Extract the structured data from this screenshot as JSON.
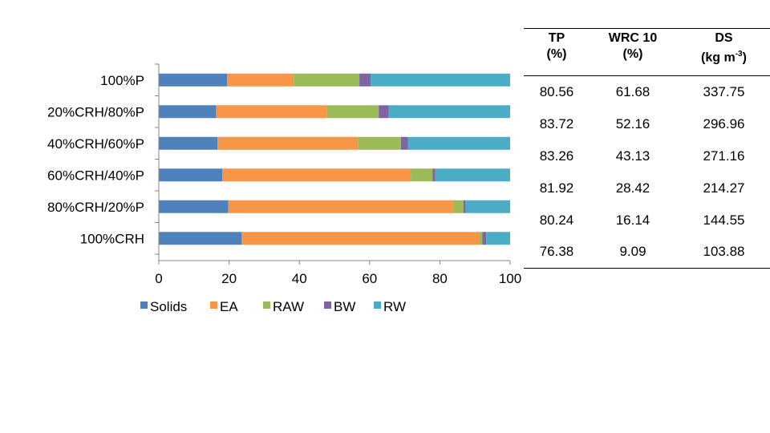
{
  "chart_data": {
    "type": "bar",
    "orientation": "horizontal",
    "stacked": true,
    "categories": [
      "100%P",
      "20%CRH/80%P",
      "40%CRH/60%P",
      "60%CRH/40%P",
      "80%CRH/20%P",
      "100%CRH"
    ],
    "series": [
      {
        "name": "Solids",
        "color": "#4F81BD",
        "values": [
          19.4,
          16.3,
          16.7,
          18.1,
          19.8,
          23.6
        ]
      },
      {
        "name": "EA",
        "color": "#F79646",
        "values": [
          19.0,
          31.5,
          40.0,
          53.6,
          64.2,
          67.6
        ]
      },
      {
        "name": "RAW",
        "color": "#9BBB59",
        "values": [
          18.7,
          14.8,
          12.2,
          6.2,
          2.7,
          0.9
        ]
      },
      {
        "name": "BW",
        "color": "#8064A2",
        "values": [
          3.2,
          2.8,
          2.0,
          0.8,
          0.6,
          1.1
        ]
      },
      {
        "name": "RW",
        "color": "#4BACC6",
        "values": [
          39.7,
          34.6,
          29.1,
          21.3,
          12.7,
          6.8
        ]
      }
    ],
    "xlim": [
      0,
      100
    ],
    "xticks": [
      "0",
      "20",
      "40",
      "60",
      "80",
      "100"
    ],
    "legend": "bottom",
    "title": "",
    "xlabel": "",
    "ylabel": ""
  },
  "table": {
    "headers": [
      {
        "line1": "TP",
        "line2": "(%)"
      },
      {
        "line1": "WRC 10",
        "line2": "(%)"
      },
      {
        "line1": "DS",
        "line2": "(kg m",
        "sup": "-3",
        "after": ")"
      }
    ],
    "rows": [
      [
        "80.56",
        "61.68",
        "337.75"
      ],
      [
        "83.72",
        "52.16",
        "296.96"
      ],
      [
        "83.26",
        "43.13",
        "271.16"
      ],
      [
        "81.92",
        "28.42",
        "214.27"
      ],
      [
        "80.24",
        "16.14",
        "144.55"
      ],
      [
        "76.38",
        "9.09",
        "103.88"
      ]
    ]
  }
}
